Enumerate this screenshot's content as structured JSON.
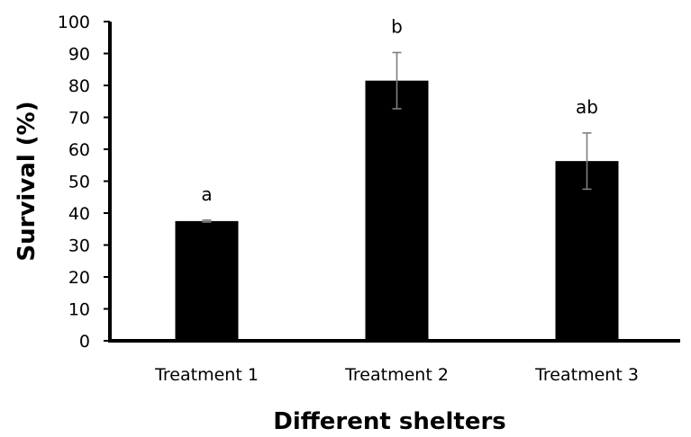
{
  "chart_data": {
    "type": "bar",
    "title": "",
    "xlabel": "Different shelters",
    "ylabel": "Survival (%)",
    "categories": [
      "Treatment 1",
      "Treatment 2",
      "Treatment 3"
    ],
    "values": [
      37.5,
      81.5,
      56.3
    ],
    "error": [
      0.3,
      8.8,
      8.8
    ],
    "significance_labels": [
      "a",
      "b",
      "ab"
    ],
    "ylim": [
      0,
      100
    ],
    "yticks": [
      0,
      10,
      20,
      30,
      40,
      50,
      60,
      70,
      80,
      90,
      100
    ],
    "grid": false,
    "legend": "none",
    "bar_color": "#000000",
    "error_bar_color": "#7f7f7f"
  }
}
